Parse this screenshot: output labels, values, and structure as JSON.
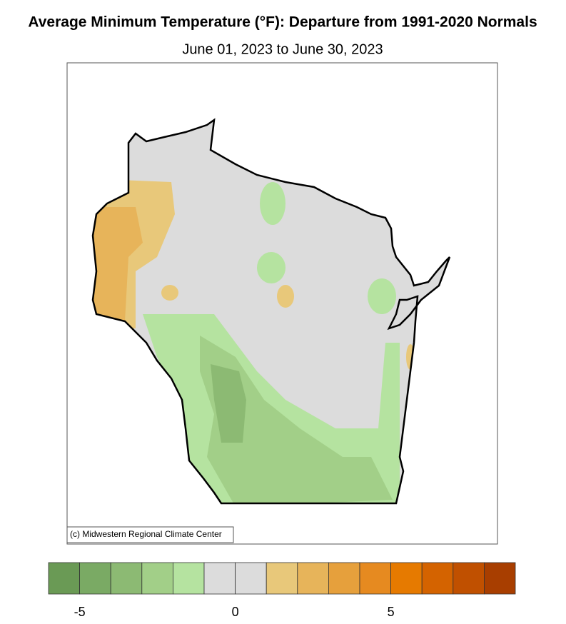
{
  "title": "Average Minimum Temperature (°F): Departure from 1991-2020 Normals",
  "subtitle": "June 01, 2023 to June 30, 2023",
  "credit": "(c) Midwestern Regional Climate Center",
  "colorbar": {
    "range": [
      -6,
      9
    ],
    "ticks": [
      -5,
      0,
      5
    ],
    "colors": [
      "#6a9a55",
      "#7aaa64",
      "#8cba73",
      "#a2cf88",
      "#b5e3a0",
      "#dcdcdc",
      "#dcdcdc",
      "#e8c87a",
      "#e7b45a",
      "#e6a03c",
      "#e68a20",
      "#e67a00",
      "#d46300",
      "#c05000",
      "#a83e00"
    ]
  }
}
